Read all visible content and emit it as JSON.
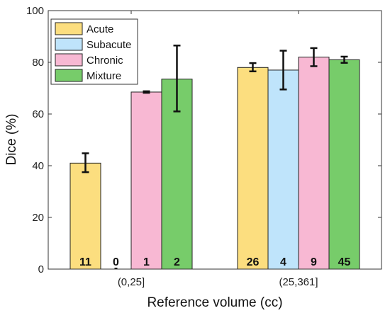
{
  "chart_data": {
    "type": "bar",
    "xlabel": "Reference volume (cc)",
    "ylabel": "Dice (%)",
    "ylim": [
      0,
      100
    ],
    "yticks": [
      0,
      20,
      40,
      60,
      80,
      100
    ],
    "categories": [
      "(0,25]",
      "(25,361]"
    ],
    "legend_position": "top-left",
    "grid": false,
    "series": [
      {
        "name": "Acute",
        "color": "#FCDE7F",
        "values": [
          41,
          78
        ],
        "err_low": [
          3.5,
          1.5
        ],
        "err_high": [
          3.8,
          1.7
        ],
        "counts": [
          "11",
          "26"
        ]
      },
      {
        "name": "Subacute",
        "color": "#BFE4FB",
        "values": [
          0,
          77
        ],
        "err_low": [
          0,
          7.5
        ],
        "err_high": [
          0,
          7.5
        ],
        "counts": [
          "0",
          "4"
        ]
      },
      {
        "name": "Chronic",
        "color": "#F8B8D3",
        "values": [
          68.5,
          82
        ],
        "err_low": [
          0.3,
          3.5
        ],
        "err_high": [
          0.3,
          3.5
        ],
        "counts": [
          "1",
          "9"
        ]
      },
      {
        "name": "Mixture",
        "color": "#77CC6A",
        "values": [
          73.5,
          81
        ],
        "err_low": [
          12.5,
          1.2
        ],
        "err_high": [
          13.0,
          1.2
        ],
        "counts": [
          "2",
          "45"
        ]
      }
    ]
  }
}
